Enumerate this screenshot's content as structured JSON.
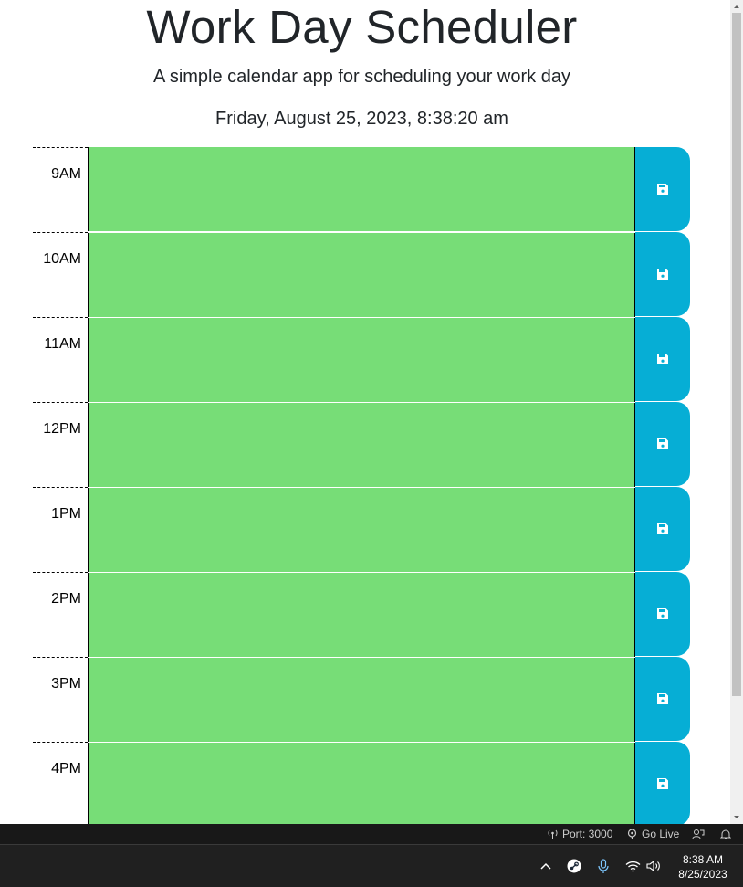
{
  "header": {
    "title": "Work Day Scheduler",
    "subtitle": "A simple calendar app for scheduling your work day",
    "current_datetime": "Friday, August 25, 2023, 8:38:20 am"
  },
  "colors": {
    "present_slot": "#77dd77",
    "save_button": "#06aed5"
  },
  "timeblocks": [
    {
      "hour": "9AM",
      "text": "",
      "save_icon": "save-icon"
    },
    {
      "hour": "10AM",
      "text": "",
      "save_icon": "save-icon"
    },
    {
      "hour": "11AM",
      "text": "",
      "save_icon": "save-icon"
    },
    {
      "hour": "12PM",
      "text": "",
      "save_icon": "save-icon"
    },
    {
      "hour": "1PM",
      "text": "",
      "save_icon": "save-icon"
    },
    {
      "hour": "2PM",
      "text": "",
      "save_icon": "save-icon"
    },
    {
      "hour": "3PM",
      "text": "",
      "save_icon": "save-icon"
    },
    {
      "hour": "4PM",
      "text": "",
      "save_icon": "save-icon"
    }
  ],
  "statusbar": {
    "port": "Port: 3000",
    "go_live": "Go Live"
  },
  "taskbar": {
    "time": "8:38 AM",
    "date": "8/25/2023"
  }
}
